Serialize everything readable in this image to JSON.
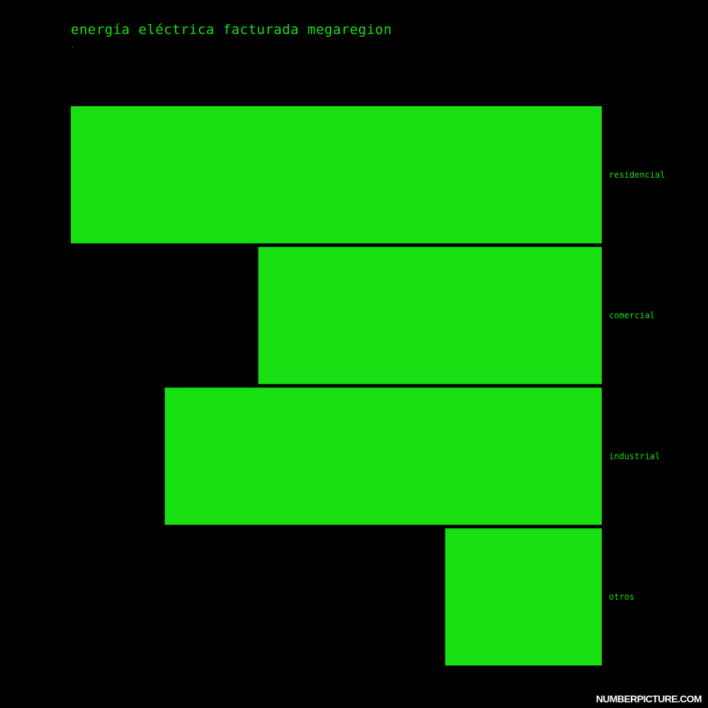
{
  "colors": {
    "background": "#000000",
    "bar": "#19e012",
    "text": "#1ae012",
    "watermark": "#ffffff"
  },
  "title": "energía eléctrica facturada megaregion",
  "subtitle": ".",
  "watermark": "NUMBERPICTURE.COM",
  "chart_data": {
    "type": "bar",
    "orientation": "horizontal",
    "direction": "right-to-left",
    "title": "energía eléctrica facturada megaregion",
    "categories": [
      "residencial",
      "comercial",
      "industrial",
      "otros"
    ],
    "values": [
      100,
      64.7,
      82.3,
      29.5
    ],
    "xlim": [
      0,
      100
    ],
    "axes_shown": false,
    "grid": false,
    "legend": "none"
  }
}
